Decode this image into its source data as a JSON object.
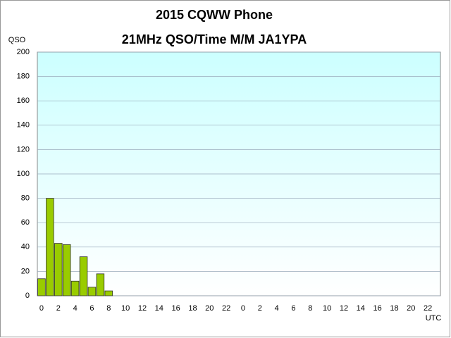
{
  "chart_data": {
    "type": "bar",
    "title": "2015  CQWW Phone",
    "subtitle": "21MHz QSO/Time  M/M JA1YPA",
    "y_label": "QSO",
    "x_label": "UTC",
    "categories": [
      "0",
      null,
      "2",
      null,
      "4",
      null,
      "6",
      null,
      "8",
      null,
      "10",
      null,
      "12",
      null,
      "14",
      null,
      "16",
      null,
      "18",
      null,
      "20",
      null,
      "22",
      null,
      "0",
      null,
      "2",
      null,
      "4",
      null,
      "6",
      null,
      "8",
      null,
      "10",
      null,
      "12",
      null,
      "14",
      null,
      "16",
      null,
      "18",
      null,
      "20",
      null,
      "22",
      null
    ],
    "values": [
      14,
      80,
      43,
      42,
      12,
      32,
      7,
      18,
      4,
      0,
      0,
      0,
      0,
      0,
      0,
      0,
      0,
      0,
      0,
      0,
      0,
      0,
      0,
      0,
      0,
      0,
      0,
      0,
      0,
      0,
      0,
      0,
      0,
      0,
      0,
      0,
      0,
      0,
      0,
      0,
      0,
      0,
      0,
      0,
      0,
      0,
      0,
      0
    ],
    "color": "#99cc00",
    "ylim": [
      0,
      200
    ],
    "yticks": [
      0,
      20,
      40,
      60,
      80,
      100,
      120,
      140,
      160,
      180,
      200
    ],
    "grid": true
  }
}
